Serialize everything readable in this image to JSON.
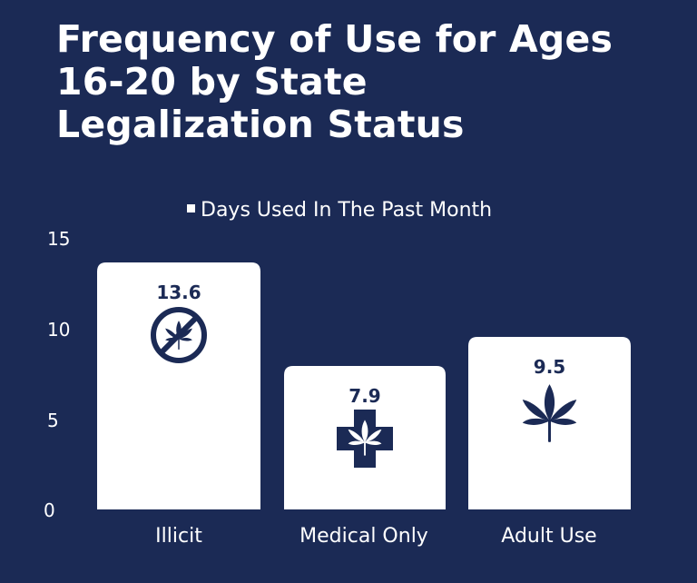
{
  "title": "Frequency of Use for Ages 16-20 by State Legalization Status",
  "colors": {
    "background": "#1b2a55",
    "bar": "#ffffff",
    "text": "#ffffff",
    "icon": "#1b2a55"
  },
  "chart_data": {
    "type": "bar",
    "title": "Frequency of Use for Ages 16-20 by State Legalization Status",
    "categories": [
      "Illicit",
      "Medical Only",
      "Adult Use"
    ],
    "series": [
      {
        "name": "Days Used In The Past Month",
        "values": [
          13.6,
          7.9,
          9.5
        ]
      }
    ],
    "data_labels": [
      "13.6",
      "7.9",
      "9.5"
    ],
    "yticks": [
      "0",
      "5",
      "10",
      "15"
    ],
    "ylim": [
      0,
      15
    ],
    "xlabel": "",
    "ylabel": "",
    "grid": false,
    "legend": "top-center",
    "icons": [
      "no-cannabis-icon",
      "medical-cross-cannabis-icon",
      "cannabis-leaf-icon"
    ]
  }
}
